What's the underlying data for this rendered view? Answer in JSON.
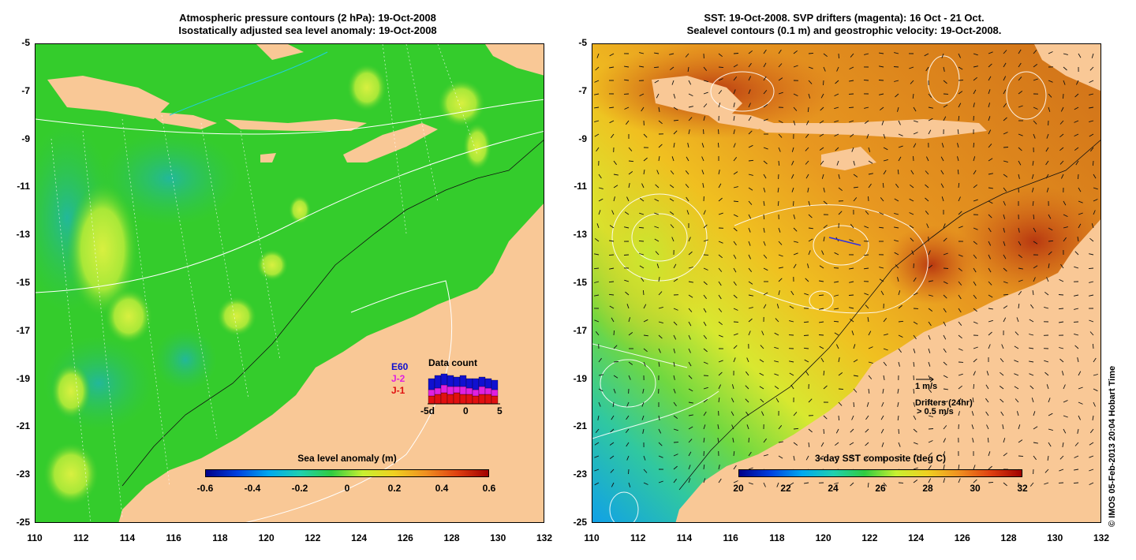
{
  "left_panel": {
    "title_line1": "Atmospheric pressure contours (2 hPa): 19-Oct-2008",
    "title_line2": "Isostatically adjusted sea level anomaly: 19-Oct-2008",
    "colorbar": {
      "title": "Sea level anomaly (m)",
      "min": -0.6,
      "max": 0.6,
      "ticks": [
        "-0.6",
        "-0.4",
        "-0.2",
        "0",
        "0.2",
        "0.4",
        "0.6"
      ]
    },
    "data_count": {
      "title": "Data count",
      "legend": [
        "E60",
        "J-2",
        "J-1"
      ],
      "legend_colors": [
        "#1010d0",
        "#e020e0",
        "#e01010"
      ],
      "xticks": [
        "-5d",
        "0",
        "5"
      ]
    }
  },
  "right_panel": {
    "title_line1": "SST: 19-Oct-2008. SVP drifters (magenta): 16 Oct - 21 Oct.",
    "title_line2": "Sealevel contours (0.1 m) and geostrophic velocity: 19-Oct-2008.",
    "colorbar": {
      "title": "3-day SST composite (deg C)",
      "min": 20,
      "max": 32,
      "ticks": [
        "20",
        "22",
        "24",
        "26",
        "28",
        "30",
        "32"
      ]
    },
    "velocity_legend": "1 m/s",
    "drifter_legend_title": "Drifters (24hr)",
    "drifter_legend_value": "> 0.5 m/s"
  },
  "axes": {
    "y_ticks": [
      "-5",
      "-7",
      "-9",
      "-11",
      "-13",
      "-15",
      "-17",
      "-19",
      "-21",
      "-23",
      "-25"
    ],
    "x_ticks": [
      "110",
      "112",
      "114",
      "116",
      "118",
      "120",
      "122",
      "124",
      "126",
      "128",
      "130",
      "132"
    ],
    "lon_range": [
      110,
      132
    ],
    "lat_range": [
      -25,
      -5
    ]
  },
  "credit": "© IMOS 05-Feb-2013 20:04 Hobart Time",
  "colors": {
    "land": "#f9c896",
    "sla_ocean": "#33cc2a",
    "sst_ocean": "#e88a1c"
  }
}
